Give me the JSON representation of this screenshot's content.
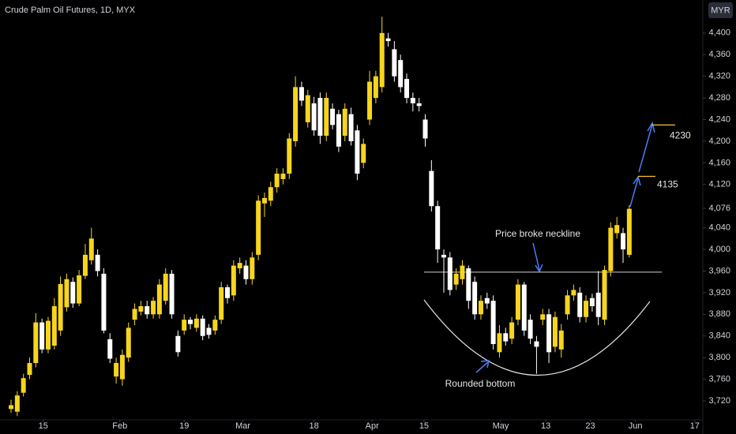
{
  "chart_data": {
    "type": "candlestick",
    "title": "Crude Palm Oil Futures, 1D, MYX",
    "currency": "MYR",
    "open": [
      3705,
      3700,
      3735,
      3768,
      3790,
      3865,
      3815,
      3822,
      3850,
      3893,
      3940,
      3900,
      3951,
      3980,
      3990,
      3955,
      3834,
      3765,
      3760,
      3800,
      3870,
      3885,
      3895,
      3880,
      3880,
      3905,
      3955,
      3840,
      3850,
      3870,
      3855,
      3872,
      3855,
      3850,
      3870,
      3930,
      3915,
      3965,
      3970,
      3945,
      3990,
      4085,
      4090,
      4115,
      4130,
      4140,
      4200,
      4300,
      4235,
      4270,
      4280,
      4210,
      4260,
      4250,
      4210,
      4250,
      4220,
      4160,
      4240,
      4280,
      4300,
      4390,
      4370,
      4350,
      4315,
      4280,
      4270,
      4240,
      4145,
      4080,
      3990,
      3985,
      3935,
      3945,
      3965,
      3940,
      3880,
      3910,
      3905,
      3810,
      3845,
      3835,
      3870,
      3935,
      3870,
      3830,
      3870,
      3880,
      3820,
      3815,
      3880,
      3915,
      3920,
      3875,
      3910,
      3920,
      3870,
      3960,
      4030,
      4030,
      3990
    ],
    "high": [
      3722,
      3738,
      3770,
      3800,
      3882,
      3872,
      3875,
      3910,
      3950,
      3955,
      3948,
      3962,
      4010,
      4040,
      4000,
      3965,
      3845,
      3800,
      3815,
      3865,
      3900,
      3905,
      3905,
      3912,
      3945,
      3965,
      3962,
      3850,
      3880,
      3875,
      3880,
      3878,
      3862,
      3878,
      3940,
      3935,
      3980,
      3985,
      3980,
      3995,
      4100,
      4105,
      4125,
      4150,
      4150,
      4215,
      4320,
      4310,
      4295,
      4282,
      4290,
      4290,
      4270,
      4258,
      4270,
      4262,
      4230,
      4205,
      4330,
      4330,
      4430,
      4400,
      4385,
      4360,
      4325,
      4290,
      4280,
      4250,
      4165,
      4090,
      4000,
      3995,
      3965,
      3980,
      3970,
      3950,
      3915,
      3920,
      3915,
      3860,
      3855,
      3875,
      3945,
      3940,
      3880,
      3840,
      3890,
      3890,
      3885,
      3862,
      3925,
      3935,
      3930,
      3915,
      3918,
      3960,
      3970,
      4050,
      4060,
      4040,
      4082
    ],
    "low": [
      3698,
      3692,
      3728,
      3760,
      3782,
      3808,
      3808,
      3815,
      3840,
      3885,
      3892,
      3895,
      3945,
      3972,
      3950,
      3845,
      3790,
      3752,
      3748,
      3792,
      3860,
      3878,
      3872,
      3872,
      3872,
      3898,
      3872,
      3802,
      3842,
      3852,
      3848,
      3832,
      3835,
      3842,
      3862,
      3900,
      3905,
      3955,
      3935,
      3935,
      3980,
      4060,
      4080,
      4105,
      4120,
      4130,
      4190,
      4265,
      4225,
      4210,
      4195,
      4200,
      4222,
      4180,
      4200,
      4192,
      4128,
      4150,
      4230,
      4270,
      4290,
      4375,
      4310,
      4290,
      4270,
      4255,
      4255,
      4190,
      4070,
      3975,
      3920,
      3915,
      3925,
      3935,
      3890,
      3870,
      3870,
      3890,
      3815,
      3800,
      3822,
      3825,
      3860,
      3840,
      3825,
      3770,
      3860,
      3790,
      3810,
      3800,
      3870,
      3905,
      3865,
      3865,
      3885,
      3860,
      3860,
      3950,
      4020,
      3975,
      3985
    ],
    "close": [
      3712,
      3730,
      3762,
      3790,
      3865,
      3815,
      3868,
      3895,
      3936,
      3945,
      3900,
      3952,
      3990,
      4020,
      3960,
      3850,
      3798,
      3790,
      3805,
      3855,
      3890,
      3895,
      3880,
      3905,
      3935,
      3955,
      3880,
      3810,
      3870,
      3862,
      3872,
      3840,
      3842,
      3870,
      3930,
      3910,
      3970,
      3975,
      3945,
      3985,
      4090,
      4095,
      4115,
      4140,
      4140,
      4205,
      4300,
      4275,
      4285,
      4220,
      4210,
      4280,
      4230,
      4190,
      4260,
      4200,
      4140,
      4195,
      4310,
      4320,
      4400,
      4385,
      4320,
      4300,
      4280,
      4270,
      4265,
      4205,
      4080,
      4000,
      3985,
      3925,
      3955,
      3970,
      3905,
      3880,
      3905,
      3900,
      3825,
      3845,
      3830,
      3865,
      3935,
      3850,
      3835,
      3820,
      3880,
      3810,
      3875,
      3850,
      3915,
      3925,
      3875,
      3905,
      3895,
      3875,
      3962,
      4040,
      4045,
      4000,
      4075
    ],
    "up_color": "#f7d51d",
    "down_color": "#ffffff",
    "xlim": [
      -1.79,
      111.9
    ],
    "xticks": [
      {
        "value": 5.2,
        "label": "15"
      },
      {
        "value": 17.6,
        "label": "Feb"
      },
      {
        "value": 28,
        "label": "19"
      },
      {
        "value": 37.5,
        "label": "Mar"
      },
      {
        "value": 49,
        "label": "18"
      },
      {
        "value": 58.4,
        "label": "Apr"
      },
      {
        "value": 66.8,
        "label": "15"
      },
      {
        "value": 79.2,
        "label": "May"
      },
      {
        "value": 86.5,
        "label": "13"
      },
      {
        "value": 93.7,
        "label": "23"
      },
      {
        "value": 101,
        "label": "Jun"
      },
      {
        "value": 110.6,
        "label": "17"
      }
    ],
    "ylim": [
      3685,
      4461
    ],
    "yticks": [
      {
        "value": 3720,
        "label": "3,720"
      },
      {
        "value": 3760,
        "label": "3,760"
      },
      {
        "value": 3800,
        "label": "3,800"
      },
      {
        "value": 3840,
        "label": "3,840"
      },
      {
        "value": 3880,
        "label": "3,880"
      },
      {
        "value": 3920,
        "label": "3,920"
      },
      {
        "value": 3960,
        "label": "3,960"
      },
      {
        "value": 4000,
        "label": "4,000"
      },
      {
        "value": 4040,
        "label": "4,040"
      },
      {
        "value": 4076,
        "label": "4,076"
      },
      {
        "value": 4120,
        "label": "4,120"
      },
      {
        "value": 4160,
        "label": "4,160"
      },
      {
        "value": 4200,
        "label": "4,200"
      },
      {
        "value": 4240,
        "label": "4,240"
      },
      {
        "value": 4280,
        "label": "4,280"
      },
      {
        "value": 4320,
        "label": "4,320"
      },
      {
        "value": 4360,
        "label": "4,360"
      },
      {
        "value": 4400,
        "label": "4,400"
      }
    ],
    "neckline": 3958,
    "neckline_label": "Price broke neckline",
    "rounded_bottom_label": "Rounded bottom",
    "targets": [
      4135,
      4230
    ]
  }
}
